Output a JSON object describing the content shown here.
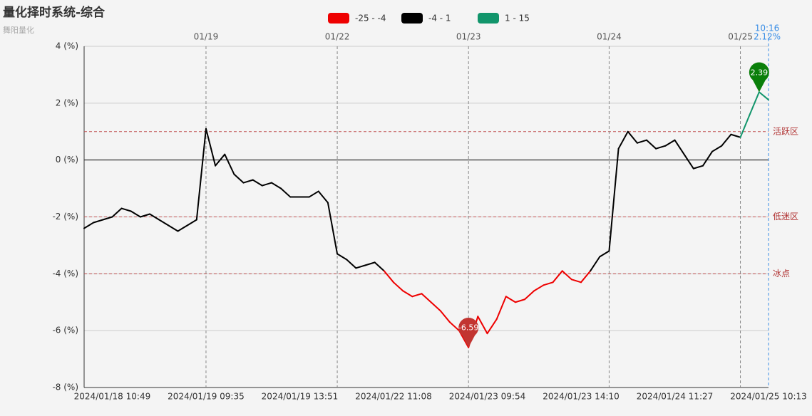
{
  "chart_data": {
    "type": "line",
    "title": "量化择时系统-综合",
    "subtitle": "舞阳量化",
    "pieces": [
      {
        "label": "-25 - -4",
        "min": -25,
        "max": -4,
        "color": "#ee0000"
      },
      {
        "label": "-4 - 1",
        "min": -4,
        "max": 1,
        "color": "#000000"
      },
      {
        "label": "1 - 15",
        "min": 1,
        "max": 15,
        "color": "#11956b"
      }
    ],
    "categories": [
      null,
      null,
      null,
      "2024/01/18 10:49",
      null,
      null,
      null,
      null,
      null,
      null,
      null,
      null,
      null,
      "2024/01/19 09:35",
      null,
      null,
      null,
      null,
      null,
      null,
      null,
      null,
      null,
      "2024/01/19 13:51",
      null,
      null,
      null,
      null,
      null,
      null,
      null,
      null,
      null,
      "2024/01/22 11:08",
      null,
      null,
      null,
      null,
      null,
      null,
      null,
      null,
      null,
      "2024/01/23 09:54",
      null,
      null,
      null,
      null,
      null,
      null,
      null,
      null,
      null,
      "2024/01/23 14:10",
      null,
      null,
      null,
      null,
      null,
      null,
      null,
      null,
      null,
      "2024/01/24 11:27",
      null,
      null,
      null,
      null,
      null,
      null,
      null,
      null,
      null,
      "2024/01/25 10:13"
    ],
    "day_labels": [
      null,
      null,
      null,
      null,
      null,
      null,
      null,
      null,
      null,
      null,
      null,
      null,
      null,
      "01/19",
      null,
      null,
      null,
      null,
      null,
      null,
      null,
      null,
      null,
      null,
      null,
      null,
      null,
      "01/22",
      null,
      null,
      null,
      null,
      null,
      null,
      null,
      null,
      null,
      null,
      null,
      null,
      null,
      "01/23",
      null,
      null,
      null,
      null,
      null,
      null,
      null,
      null,
      null,
      null,
      null,
      null,
      null,
      null,
      "01/24",
      null,
      null,
      null,
      null,
      null,
      null,
      null,
      null,
      null,
      null,
      null,
      null,
      null,
      "01/25",
      null,
      null,
      null
    ],
    "values": [
      -2.4,
      -2.2,
      -2.1,
      -2.0,
      -1.7,
      -1.8,
      -2.0,
      -1.9,
      -2.1,
      -2.3,
      -2.5,
      -2.3,
      -2.1,
      1.1,
      -0.2,
      0.2,
      -0.5,
      -0.8,
      -0.7,
      -0.9,
      -0.8,
      -1.0,
      -1.3,
      -1.3,
      -1.3,
      -1.1,
      -1.5,
      -3.3,
      -3.5,
      -3.8,
      -3.7,
      -3.6,
      -3.9,
      -4.3,
      -4.6,
      -4.8,
      -4.7,
      -5.0,
      -5.3,
      -5.7,
      -6.0,
      -6.59,
      -5.5,
      -6.1,
      -5.6,
      -4.8,
      -5.0,
      -4.9,
      -4.6,
      -4.4,
      -4.3,
      -3.9,
      -4.2,
      -4.3,
      -3.9,
      -3.4,
      -3.2,
      0.4,
      1.0,
      0.6,
      0.7,
      0.4,
      0.5,
      0.7,
      0.2,
      -0.3,
      -0.2,
      0.3,
      0.5,
      0.9,
      0.8,
      1.6,
      2.39,
      2.12
    ],
    "max_index": 72,
    "min_index": 41,
    "cursor": {
      "time": "10:16",
      "label": "2.12%"
    },
    "ylim": [
      -8,
      4
    ],
    "yticks": [
      {
        "value": -8,
        "label": "-8 (%)"
      },
      {
        "value": -6,
        "label": "-6 (%)"
      },
      {
        "value": -4,
        "label": "-4 (%)"
      },
      {
        "value": -2,
        "label": "-2 (%)"
      },
      {
        "value": 0,
        "label": "0 (%)"
      },
      {
        "value": 2,
        "label": "2 (%)"
      },
      {
        "value": 4,
        "label": "4 (%)"
      }
    ],
    "mark_lines": [
      {
        "value": 1,
        "label": "活跃区"
      },
      {
        "value": -2,
        "label": "低迷区"
      },
      {
        "value": -4,
        "label": "冰点"
      }
    ],
    "grid": true
  }
}
